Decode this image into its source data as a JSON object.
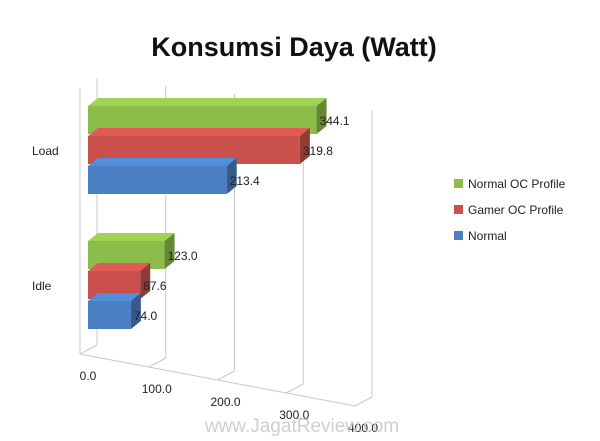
{
  "chart_data": {
    "type": "bar",
    "orientation": "horizontal",
    "style": "3d",
    "title": "Konsumsi Daya (Watt)",
    "xlabel": "",
    "ylabel": "",
    "categories": [
      "Load",
      "Idle"
    ],
    "series": [
      {
        "name": "Normal OC Profile",
        "values": [
          344.1,
          123.0
        ],
        "labels": [
          "344.1",
          "123.0"
        ],
        "color": "#8cbd4a"
      },
      {
        "name": "Gamer OC Profile",
        "values": [
          319.8,
          87.6
        ],
        "labels": [
          "319.8",
          "87.6"
        ],
        "color": "#c9504b"
      },
      {
        "name": "Normal",
        "values": [
          213.4,
          74.0
        ],
        "labels": [
          "213.4",
          "74.0"
        ],
        "color": "#4a7fc3"
      }
    ],
    "xlim": [
      0,
      400
    ],
    "ticks": [
      "0.0",
      "100.0",
      "200.0",
      "300.0",
      "400.0"
    ],
    "grid": true,
    "legend_position": "right"
  },
  "watermark": "www.JagatReview.com"
}
